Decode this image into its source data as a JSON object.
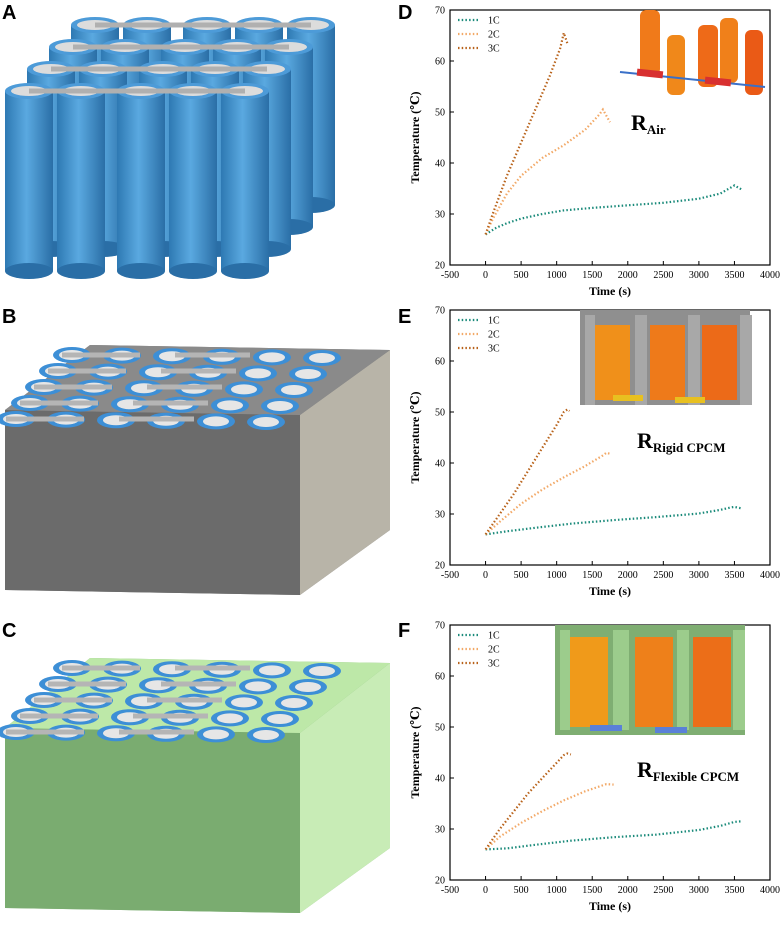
{
  "panels": {
    "A": "A",
    "B": "B",
    "C": "C",
    "D": "D",
    "E": "E",
    "F": "F"
  },
  "colors": {
    "c1": "#1a8a7a",
    "c2": "#f2a866",
    "c3": "#b8621a",
    "cell_blue": "#3d8fcc",
    "box_gray": "#6e6e6e",
    "box_green": "#7fae72"
  },
  "chart_data": [
    {
      "type": "line",
      "panel": "D",
      "xlabel": "Time (s)",
      "ylabel": "Temperature (℃)",
      "xlim": [
        -500,
        4000
      ],
      "ylim": [
        20,
        70
      ],
      "xticks": [
        -500,
        0,
        500,
        1000,
        1500,
        2000,
        2500,
        3000,
        3500,
        4000
      ],
      "yticks": [
        20,
        30,
        40,
        50,
        60,
        70
      ],
      "legend_position": "top-left",
      "inset_label": {
        "main": "R",
        "sub": "Air"
      },
      "series": [
        {
          "name": "1C",
          "x": [
            0,
            150,
            300,
            500,
            800,
            1100,
            1500,
            2000,
            2500,
            3000,
            3300,
            3450,
            3500,
            3600
          ],
          "y": [
            26,
            27.3,
            28.2,
            29.1,
            30,
            30.7,
            31.2,
            31.7,
            32.2,
            33,
            34,
            35.2,
            35.6,
            34.8
          ]
        },
        {
          "name": "2C",
          "x": [
            0,
            100,
            300,
            500,
            800,
            1100,
            1400,
            1600,
            1650,
            1750
          ],
          "y": [
            26,
            29,
            34,
            37.5,
            41,
            43.5,
            46.5,
            49.5,
            50.5,
            48
          ]
        },
        {
          "name": "3C",
          "x": [
            0,
            100,
            300,
            500,
            700,
            900,
            1050,
            1100,
            1150
          ],
          "y": [
            26,
            30,
            37.5,
            44,
            50.5,
            57,
            62.5,
            65.5,
            63.5
          ]
        }
      ]
    },
    {
      "type": "line",
      "panel": "E",
      "xlabel": "Time (s)",
      "ylabel": "Temperature (℃)",
      "xlim": [
        -500,
        4000
      ],
      "ylim": [
        20,
        70
      ],
      "xticks": [
        -500,
        0,
        500,
        1000,
        1500,
        2000,
        2500,
        3000,
        3500,
        4000
      ],
      "yticks": [
        20,
        30,
        40,
        50,
        60,
        70
      ],
      "legend_position": "top-left",
      "inset_label": {
        "main": "R",
        "sub": "Rigid CPCM"
      },
      "series": [
        {
          "name": "1C",
          "x": [
            0,
            300,
            700,
            1200,
            1800,
            2400,
            3000,
            3300,
            3450,
            3500,
            3600
          ],
          "y": [
            26,
            26.6,
            27.3,
            28.1,
            28.8,
            29.4,
            30.1,
            30.8,
            31.3,
            31.4,
            31.1
          ]
        },
        {
          "name": "2C",
          "x": [
            0,
            200,
            500,
            800,
            1100,
            1400,
            1650,
            1700,
            1750
          ],
          "y": [
            26,
            28.5,
            32,
            34.8,
            37.2,
            39.4,
            41.5,
            42,
            41.8
          ]
        },
        {
          "name": "3C",
          "x": [
            0,
            200,
            400,
            600,
            800,
            1000,
            1100,
            1150,
            1180
          ],
          "y": [
            26,
            30,
            34,
            38.5,
            43,
            47.5,
            50,
            50.5,
            50.2
          ]
        }
      ]
    },
    {
      "type": "line",
      "panel": "F",
      "xlabel": "Time (s)",
      "ylabel": "Temperature (℃)",
      "xlim": [
        -500,
        4000
      ],
      "ylim": [
        20,
        70
      ],
      "xticks": [
        -500,
        0,
        500,
        1000,
        1500,
        2000,
        2500,
        3000,
        3500,
        4000
      ],
      "yticks": [
        20,
        30,
        40,
        50,
        60,
        70
      ],
      "legend_position": "top-left",
      "inset_label": {
        "main": "R",
        "sub": "Flexible CPCM"
      },
      "series": [
        {
          "name": "1C",
          "x": [
            0,
            300,
            700,
            1200,
            1800,
            2400,
            3000,
            3300,
            3500,
            3600
          ],
          "y": [
            26,
            26.2,
            26.9,
            27.7,
            28.4,
            28.9,
            29.8,
            30.6,
            31.4,
            31.5
          ]
        },
        {
          "name": "2C",
          "x": [
            0,
            200,
            500,
            800,
            1100,
            1400,
            1700,
            1800
          ],
          "y": [
            26,
            28.5,
            31.2,
            33.5,
            35.6,
            37.4,
            38.8,
            38.7
          ]
        },
        {
          "name": "3C",
          "x": [
            0,
            200,
            400,
            600,
            800,
            1000,
            1100,
            1150,
            1200
          ],
          "y": [
            26,
            30,
            33.5,
            37,
            40,
            43,
            44.5,
            44.8,
            44.6
          ]
        }
      ]
    }
  ]
}
